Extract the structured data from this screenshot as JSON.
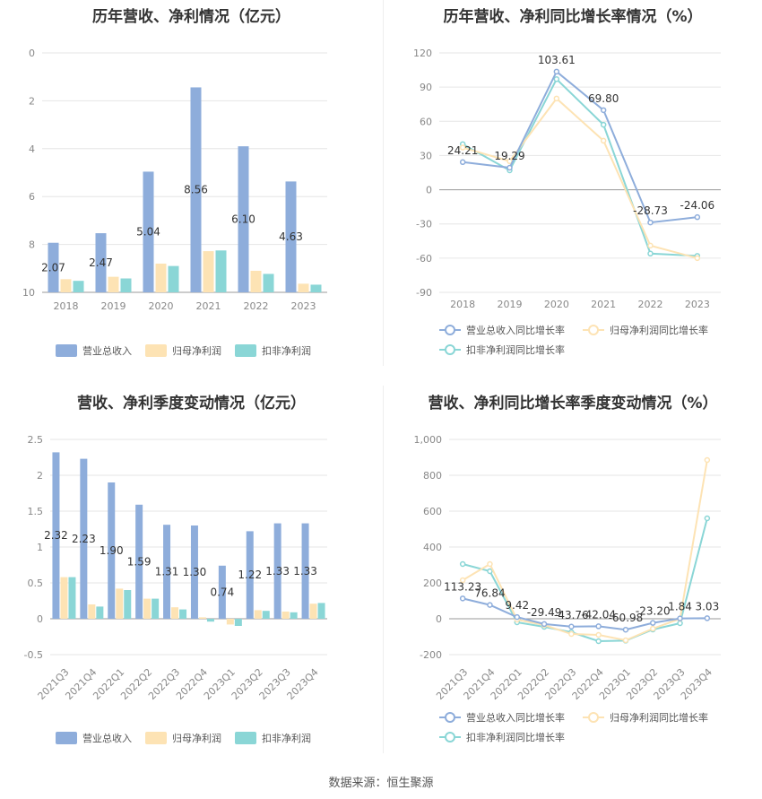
{
  "source": "数据来源：恒生聚源",
  "colors": {
    "revenue": "#8eaddb",
    "net_profit": "#fde3b4",
    "deducted": "#8ad6d6",
    "line_revenue": "#8eaddb",
    "line_net": "#fde3b4",
    "line_deducted": "#8ad6d6"
  },
  "chart_data": [
    {
      "type": "bar",
      "title": "历年营收、净利情况（亿元）",
      "categories": [
        "2018",
        "2019",
        "2020",
        "2021",
        "2022",
        "2023"
      ],
      "ylim": [
        0,
        10
      ],
      "yticks": [
        "0",
        "2",
        "4",
        "6",
        "8",
        "10"
      ],
      "series": [
        {
          "name": "营业总收入",
          "values": [
            2.07,
            2.47,
            5.04,
            8.56,
            6.1,
            4.63
          ],
          "labels": [
            "2.07",
            "2.47",
            "5.04",
            "8.56",
            "6.10",
            "4.63"
          ]
        },
        {
          "name": "归母净利润",
          "values": [
            0.55,
            0.65,
            1.2,
            1.72,
            0.9,
            0.36
          ]
        },
        {
          "name": "扣非净利润",
          "values": [
            0.48,
            0.58,
            1.1,
            1.75,
            0.77,
            0.32
          ]
        }
      ],
      "legend": "bottom"
    },
    {
      "type": "line",
      "title": "历年营收、净利同比增长率情况（%）",
      "categories": [
        "2018",
        "2019",
        "2020",
        "2021",
        "2022",
        "2023"
      ],
      "ylim": [
        -90,
        120
      ],
      "yticks": [
        "120",
        "90",
        "60",
        "30",
        "0",
        "-30",
        "-60",
        "-90"
      ],
      "series": [
        {
          "name": "营业总收入同比增长率",
          "values": [
            24.21,
            19.29,
            103.61,
            69.8,
            -28.73,
            -24.06
          ],
          "labels": [
            "24.21",
            "19.29",
            "103.61",
            "69.80",
            "-28.73",
            "-24.06"
          ]
        },
        {
          "name": "归母净利润同比增长率",
          "values": [
            37,
            25,
            80,
            43,
            -49,
            -60
          ]
        },
        {
          "name": "扣非净利润同比增长率",
          "values": [
            40,
            17,
            97,
            57,
            -56,
            -58
          ]
        }
      ],
      "legend": "bottom"
    },
    {
      "type": "bar",
      "title": "营收、净利季度变动情况（亿元）",
      "categories": [
        "2021Q3",
        "2021Q4",
        "2022Q1",
        "2022Q2",
        "2022Q3",
        "2022Q4",
        "2023Q1",
        "2023Q2",
        "2023Q3",
        "2023Q4"
      ],
      "ylim": [
        -0.5,
        2.5
      ],
      "yticks": [
        "2.5",
        "2",
        "1.5",
        "1",
        "0.5",
        "0",
        "-0.5"
      ],
      "series": [
        {
          "name": "营业总收入",
          "values": [
            2.32,
            2.23,
            1.9,
            1.59,
            1.31,
            1.3,
            0.74,
            1.22,
            1.33,
            1.33
          ],
          "labels": [
            "2.32",
            "2.23",
            "1.90",
            "1.59",
            "1.31",
            "1.30",
            "0.74",
            "1.22",
            "1.33",
            "1.33"
          ]
        },
        {
          "name": "归母净利润",
          "values": [
            0.58,
            0.2,
            0.42,
            0.28,
            0.16,
            0.02,
            -0.08,
            0.12,
            0.1,
            0.21
          ]
        },
        {
          "name": "扣非净利润",
          "values": [
            0.58,
            0.17,
            0.4,
            0.28,
            0.13,
            -0.04,
            -0.1,
            0.11,
            0.09,
            0.22
          ]
        }
      ],
      "legend": "bottom"
    },
    {
      "type": "line",
      "title": "营收、净利同比增长率季度变动情况（%）",
      "categories": [
        "2021Q3",
        "2021Q4",
        "2022Q1",
        "2022Q2",
        "2022Q3",
        "2022Q4",
        "2023Q1",
        "2023Q2",
        "2023Q3",
        "2023Q4"
      ],
      "ylim": [
        -200,
        1000
      ],
      "yticks": [
        "1,000",
        "800",
        "600",
        "400",
        "200",
        "0",
        "-200"
      ],
      "series": [
        {
          "name": "营业总收入同比增长率",
          "values": [
            113.23,
            76.84,
            9.42,
            -29.49,
            -43.76,
            -42.04,
            -60.98,
            -23.2,
            1.84,
            3.03
          ],
          "labels": [
            "113.23",
            "76.84",
            "9.42",
            "-29.49",
            "-43.76",
            "-42.04",
            "-60.98",
            "-23.20",
            "1.84",
            "3.03"
          ]
        },
        {
          "name": "归母净利润同比增长率",
          "values": [
            215,
            305,
            -5,
            -35,
            -85,
            -90,
            -120,
            -55,
            0,
            885
          ]
        },
        {
          "name": "扣非净利润同比增长率",
          "values": [
            305,
            265,
            -20,
            -45,
            -75,
            -125,
            -122,
            -60,
            -25,
            560
          ]
        }
      ],
      "legend": "bottom"
    }
  ]
}
